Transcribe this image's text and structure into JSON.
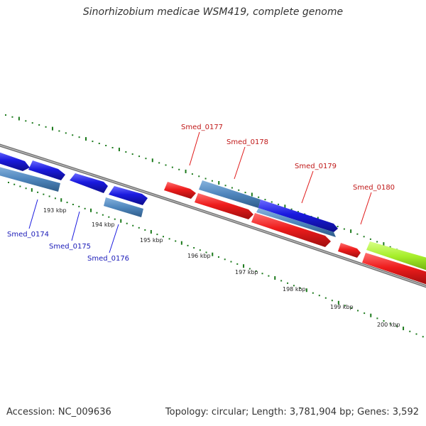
{
  "title": "Sinorhizobium medicae WSM419, complete genome",
  "footer": {
    "accession": "Accession: NC_009636",
    "summary": "Topology: circular; Length: 3,781,904 bp; Genes: 3,592"
  },
  "colors": {
    "blue_gene": "#1a1adf",
    "steelblue_gene": "#4f86bd",
    "red_gene": "#ee1c1c",
    "green_gene": "#a6ee2a",
    "backbone": "#8a8a8a",
    "tick_green": "#1c7a1c",
    "label_blue": "#1a1ab8",
    "label_red": "#c01818"
  },
  "ticks": [
    "193 kbp",
    "194 kbp",
    "195 kbp",
    "196 kbp",
    "197 kbp",
    "198 kbp",
    "199 kbp",
    "200 kbp"
  ],
  "gene_labels": [
    {
      "text": "Smed_0174",
      "color": "blue"
    },
    {
      "text": "Smed_0175",
      "color": "blue"
    },
    {
      "text": "Smed_0176",
      "color": "blue"
    },
    {
      "text": "Smed_0177",
      "color": "red"
    },
    {
      "text": "Smed_0178",
      "color": "red"
    },
    {
      "text": "Smed_0179",
      "color": "red"
    },
    {
      "text": "Smed_0180",
      "color": "red"
    }
  ]
}
